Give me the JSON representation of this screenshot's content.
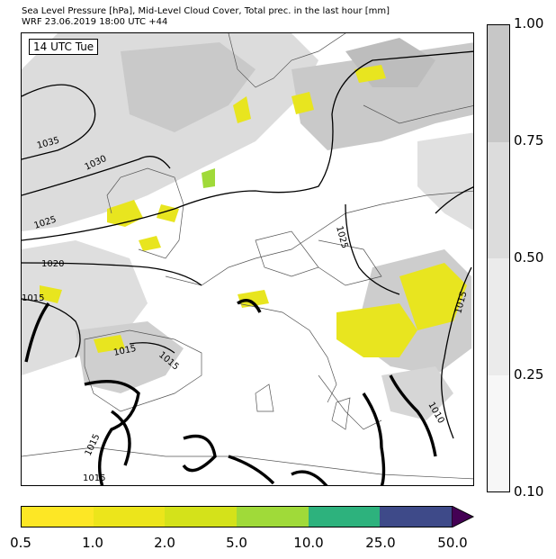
{
  "title": {
    "line1": "Sea Level Pressure [hPa], Mid-Level Cloud Cover, Total prec. in the last hour [mm]",
    "line2": "WRF 23.06.2019 18:00 UTC +44"
  },
  "map": {
    "time_label": "14 UTC Tue",
    "isobar_labels": [
      "1035",
      "1030",
      "1025",
      "1020",
      "1015",
      "1015",
      "1015",
      "1015",
      "1015",
      "1015",
      "1010",
      "1025"
    ]
  },
  "cloud_colorbar": {
    "ticks": [
      "1.00",
      "0.75",
      "0.50",
      "0.25",
      "0.10"
    ],
    "colors": [
      "#c7c7c7",
      "#dcdcdc",
      "#ebebeb",
      "#f7f7f7"
    ]
  },
  "precip_colorbar": {
    "ticks": [
      "0.5",
      "1.0",
      "2.0",
      "5.0",
      "10.0",
      "25.0",
      "50.0"
    ],
    "colors": [
      "#fde725",
      "#ece51b",
      "#d4e21a",
      "#a0da39",
      "#2db27d",
      "#3e4a89",
      "#440154"
    ]
  }
}
